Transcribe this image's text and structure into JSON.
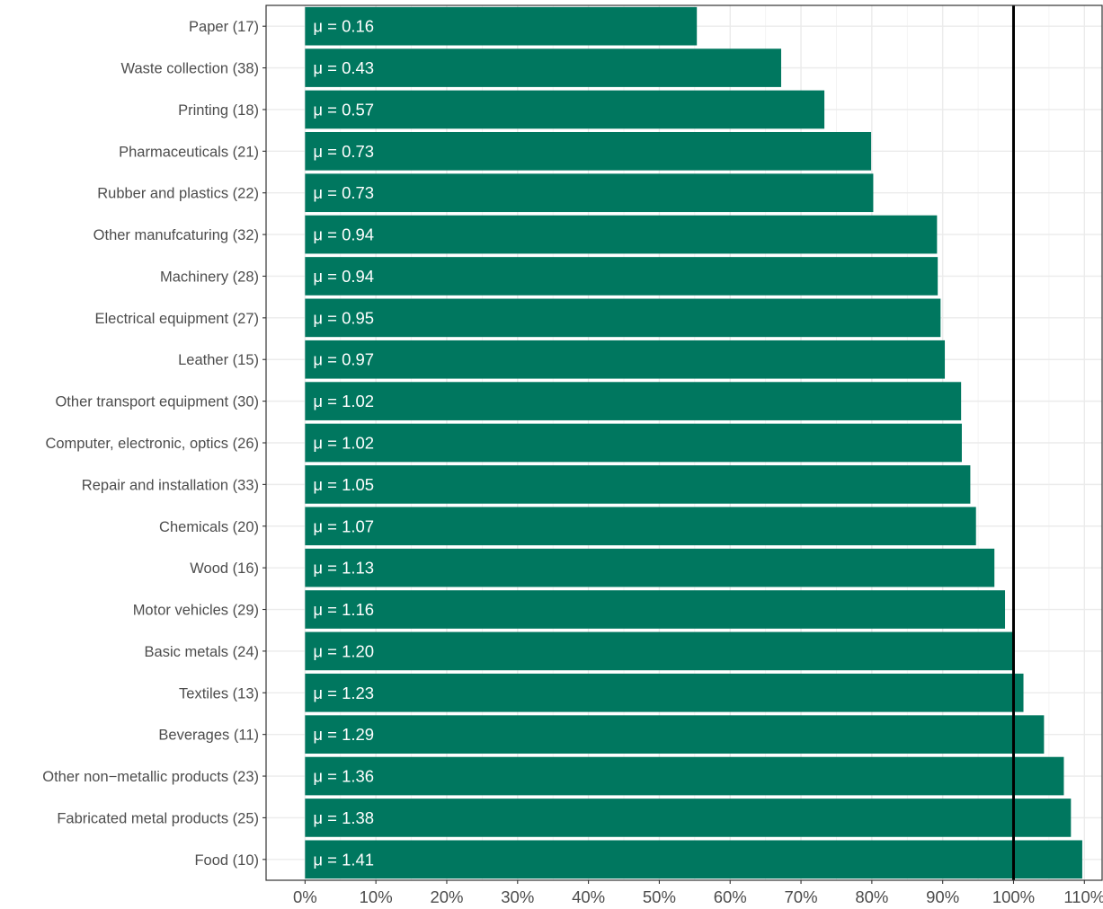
{
  "chart_data": {
    "type": "bar",
    "orientation": "horizontal",
    "title": "",
    "xlabel": "",
    "ylabel": "",
    "xlim": [
      -0.055,
      1.125
    ],
    "x_ticks": [
      0,
      0.1,
      0.2,
      0.3,
      0.4,
      0.5,
      0.6,
      0.7,
      0.8,
      0.9,
      1.0,
      1.1
    ],
    "x_tick_labels": [
      "0%",
      "10%",
      "20%",
      "30%",
      "40%",
      "50%",
      "60%",
      "70%",
      "80%",
      "90%",
      "100%",
      "110%"
    ],
    "reference_line": 1.0,
    "grid": true,
    "bar_color": "#00775f",
    "reference_line_color": "#000000",
    "categories": [
      "Paper (17)",
      "Waste collection (38)",
      "Printing (18)",
      "Pharmaceuticals (21)",
      "Rubber and plastics (22)",
      "Other manufcaturing (32)",
      "Machinery (28)",
      "Electrical equipment (27)",
      "Leather (15)",
      "Other transport equipment (30)",
      "Computer, electronic, optics (26)",
      "Repair and installation (33)",
      "Chemicals (20)",
      "Wood (16)",
      "Motor vehicles (29)",
      "Basic metals (24)",
      "Textiles (13)",
      "Beverages (11)",
      "Other non−metallic products (23)",
      "Fabricated metal products (25)",
      "Food (10)"
    ],
    "values": [
      0.553,
      0.672,
      0.733,
      0.799,
      0.802,
      0.892,
      0.893,
      0.897,
      0.903,
      0.926,
      0.927,
      0.939,
      0.947,
      0.973,
      0.988,
      1.001,
      1.014,
      1.043,
      1.071,
      1.081,
      1.097
    ],
    "bar_labels": [
      "μ = 0.16",
      "μ = 0.43",
      "μ = 0.57",
      "μ = 0.73",
      "μ = 0.73",
      "μ = 0.94",
      "μ = 0.94",
      "μ = 0.95",
      "μ = 0.97",
      "μ = 1.02",
      "μ = 1.02",
      "μ = 1.05",
      "μ = 1.07",
      "μ = 1.13",
      "μ = 1.16",
      "μ = 1.20",
      "μ = 1.23",
      "μ = 1.29",
      "μ = 1.36",
      "μ = 1.38",
      "μ = 1.41"
    ]
  }
}
